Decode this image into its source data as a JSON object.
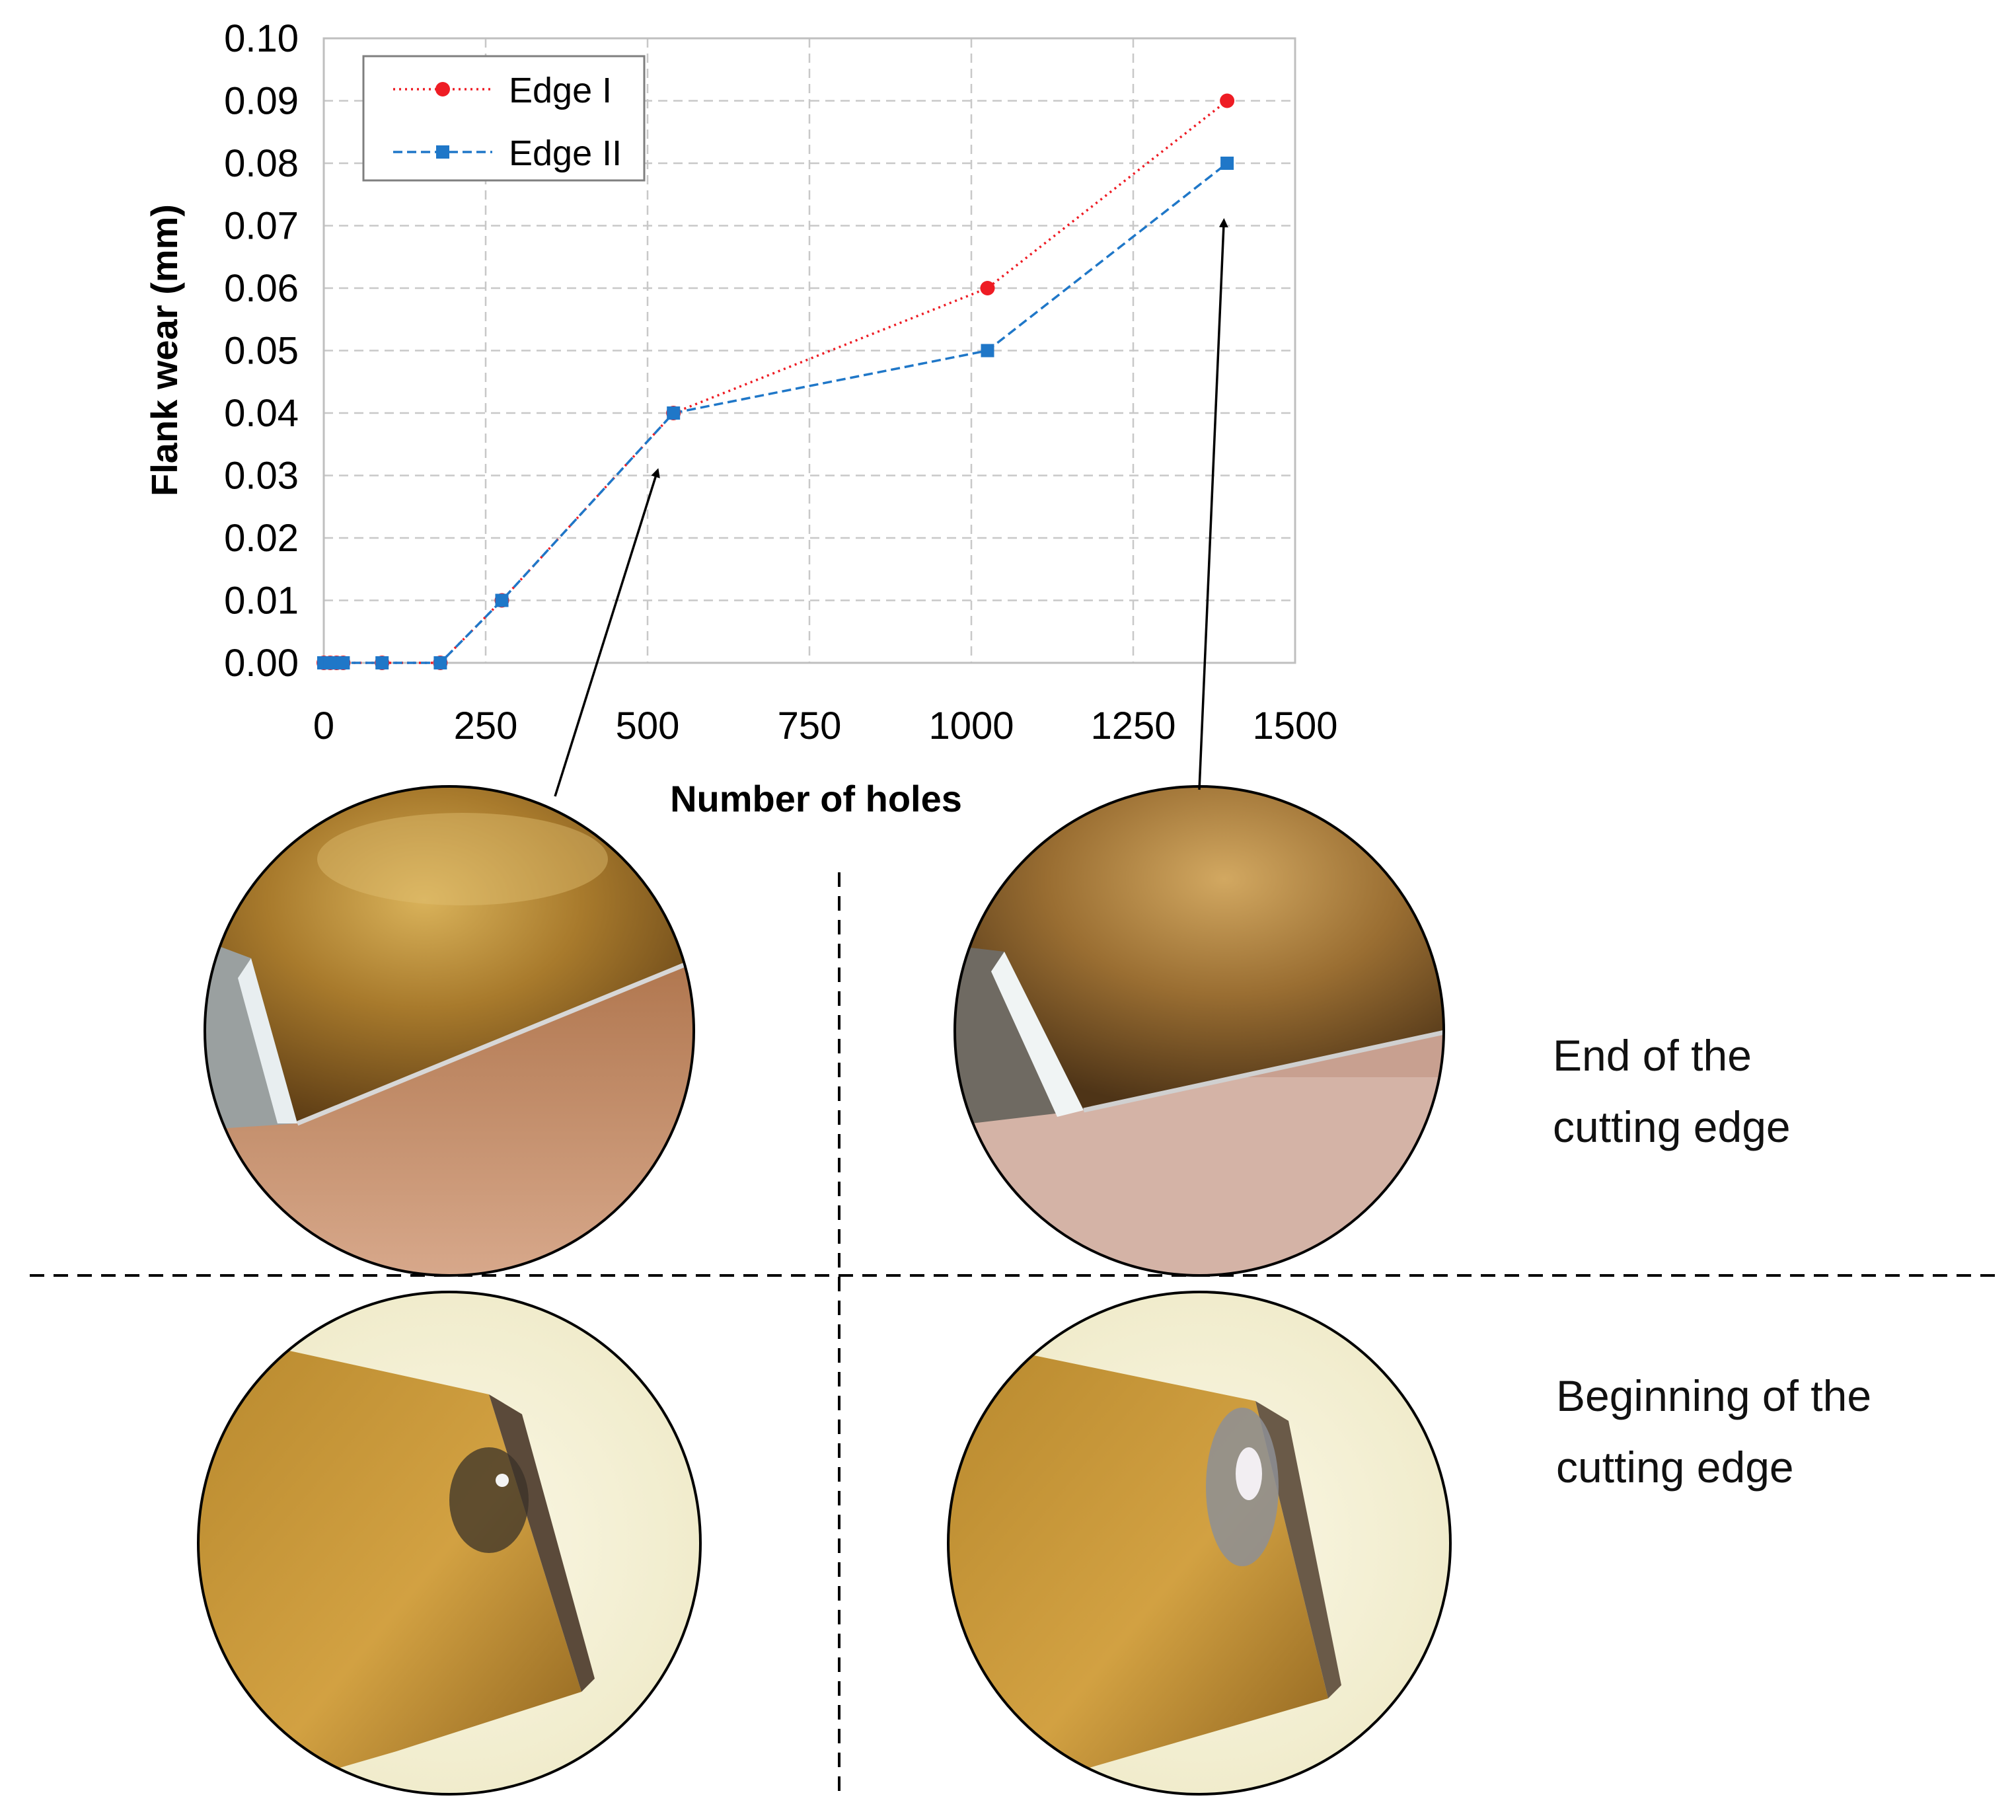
{
  "chart_data": {
    "type": "line",
    "title": "",
    "xlabel": "Number of holes",
    "ylabel": "Flank wear (mm)",
    "xlim": [
      0,
      1500
    ],
    "ylim": [
      0,
      0.1
    ],
    "xticks": [
      "0",
      "250",
      "500",
      "750",
      "1000",
      "1250",
      "1500"
    ],
    "yticks": [
      "0.00",
      "0.01",
      "0.02",
      "0.03",
      "0.04",
      "0.05",
      "0.06",
      "0.07",
      "0.08",
      "0.09",
      "0.10"
    ],
    "grid": true,
    "legend_position": "top-left",
    "series": [
      {
        "name": "Edge I",
        "color": "#ee1c24",
        "marker": "circle",
        "line_style": "dotted",
        "x": [
          0,
          10,
          20,
          30,
          90,
          180,
          275,
          540,
          1025,
          1395
        ],
        "y": [
          0,
          0,
          0,
          0,
          0,
          0,
          0.01,
          0.04,
          0.06,
          0.09
        ]
      },
      {
        "name": "Edge II",
        "color": "#1f77c8",
        "marker": "square",
        "line_style": "dashed",
        "x": [
          0,
          10,
          20,
          30,
          90,
          180,
          275,
          540,
          1025,
          1395
        ],
        "y": [
          0,
          0,
          0,
          0,
          0,
          0,
          0.01,
          0.04,
          0.05,
          0.08
        ]
      }
    ],
    "annotations": {
      "arrow_targets_x": [
        540,
        1395
      ]
    }
  },
  "photos": {
    "row_end_caption": [
      "End of the",
      "cutting edge"
    ],
    "row_beginning_caption": [
      "Beginning of the",
      "cutting edge"
    ]
  }
}
